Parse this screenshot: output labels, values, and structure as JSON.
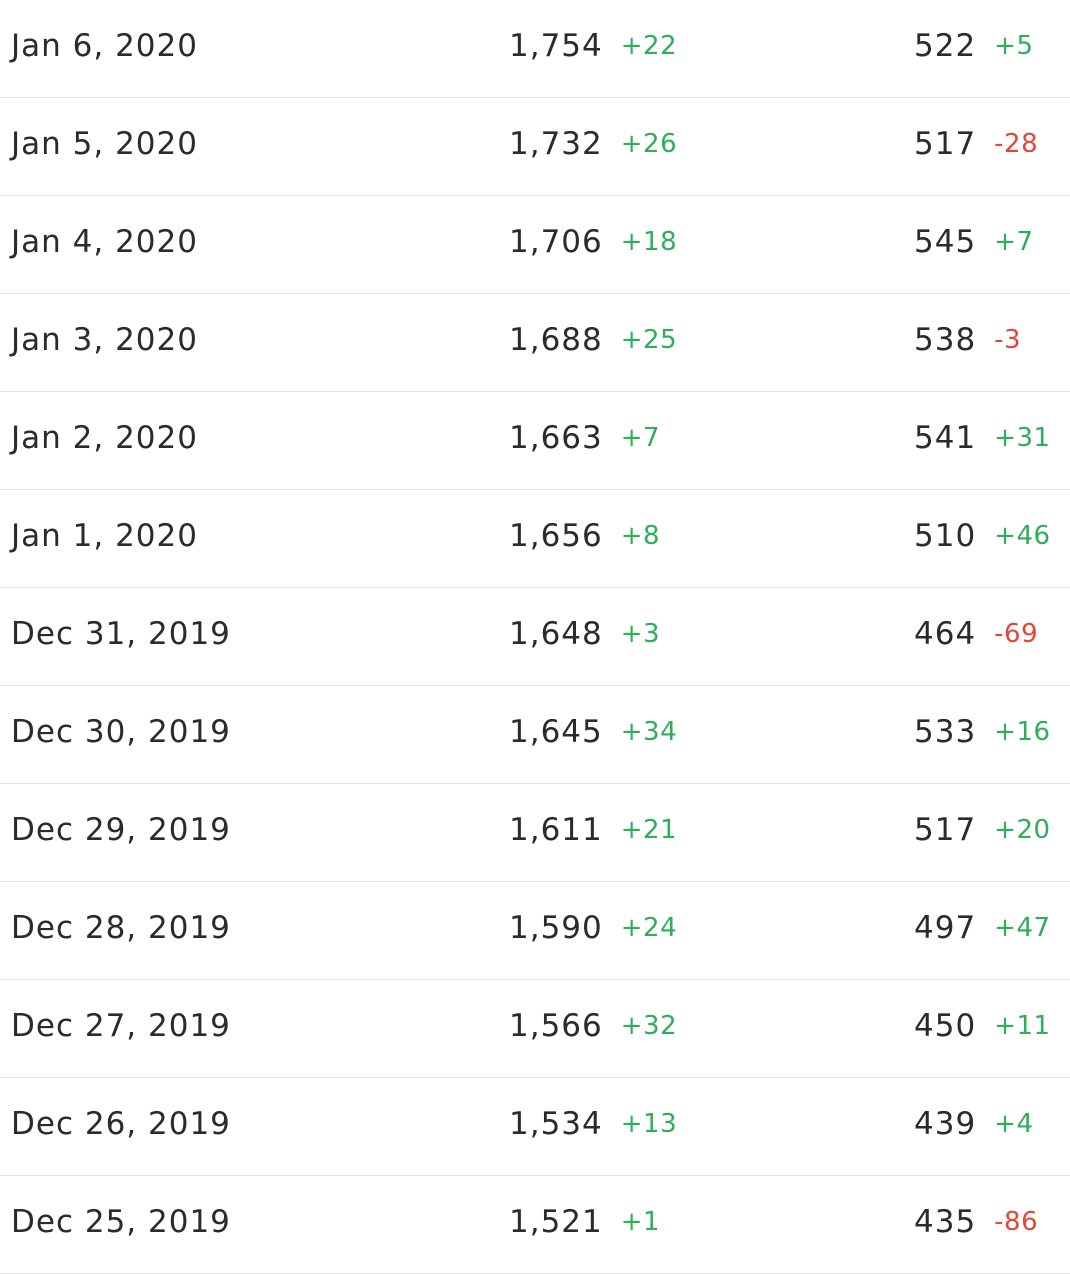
{
  "colors": {
    "positive": "#2fae5a",
    "negative": "#e0473a",
    "text": "#2b2b2b",
    "divider": "#e3e3e3"
  },
  "rows": [
    {
      "date": "Jan 6, 2020",
      "a": "1,754",
      "a_delta": "+22",
      "b": "522",
      "b_delta": "+5"
    },
    {
      "date": "Jan 5, 2020",
      "a": "1,732",
      "a_delta": "+26",
      "b": "517",
      "b_delta": "-28"
    },
    {
      "date": "Jan 4, 2020",
      "a": "1,706",
      "a_delta": "+18",
      "b": "545",
      "b_delta": "+7"
    },
    {
      "date": "Jan 3, 2020",
      "a": "1,688",
      "a_delta": "+25",
      "b": "538",
      "b_delta": "-3"
    },
    {
      "date": "Jan 2, 2020",
      "a": "1,663",
      "a_delta": "+7",
      "b": "541",
      "b_delta": "+31"
    },
    {
      "date": "Jan 1, 2020",
      "a": "1,656",
      "a_delta": "+8",
      "b": "510",
      "b_delta": "+46"
    },
    {
      "date": "Dec 31, 2019",
      "a": "1,648",
      "a_delta": "+3",
      "b": "464",
      "b_delta": "-69"
    },
    {
      "date": "Dec 30, 2019",
      "a": "1,645",
      "a_delta": "+34",
      "b": "533",
      "b_delta": "+16"
    },
    {
      "date": "Dec 29, 2019",
      "a": "1,611",
      "a_delta": "+21",
      "b": "517",
      "b_delta": "+20"
    },
    {
      "date": "Dec 28, 2019",
      "a": "1,590",
      "a_delta": "+24",
      "b": "497",
      "b_delta": "+47"
    },
    {
      "date": "Dec 27, 2019",
      "a": "1,566",
      "a_delta": "+32",
      "b": "450",
      "b_delta": "+11"
    },
    {
      "date": "Dec 26, 2019",
      "a": "1,534",
      "a_delta": "+13",
      "b": "439",
      "b_delta": "+4"
    },
    {
      "date": "Dec 25, 2019",
      "a": "1,521",
      "a_delta": "+1",
      "b": "435",
      "b_delta": "-86"
    }
  ]
}
